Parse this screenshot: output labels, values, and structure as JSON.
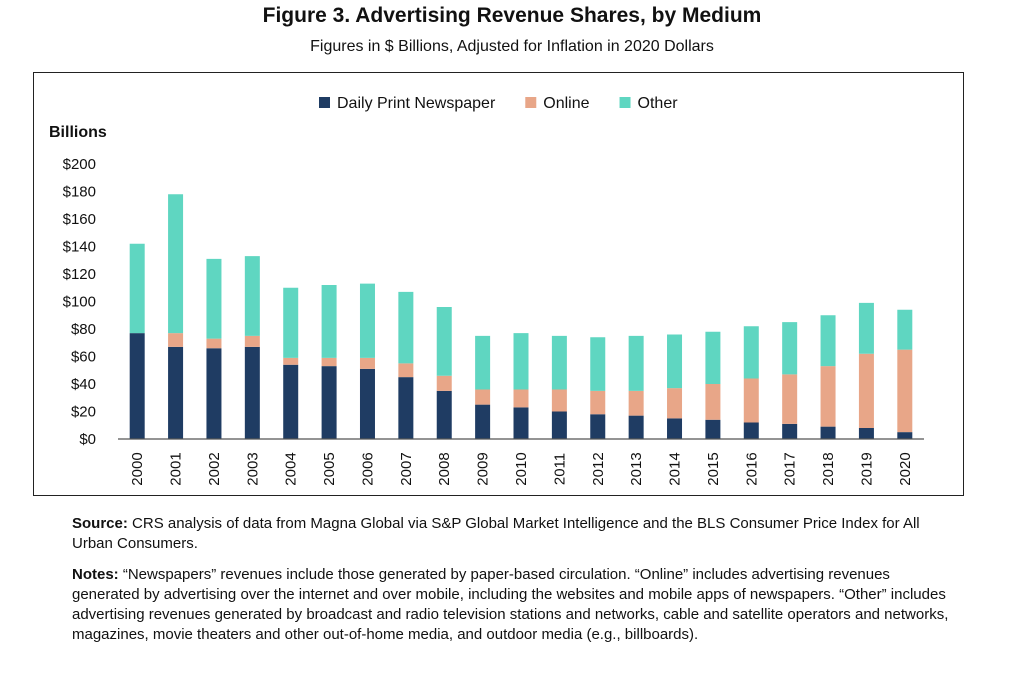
{
  "title": "Figure 3. Advertising Revenue Shares, by Medium",
  "subtitle": "Figures in $ Billions, Adjusted for Inflation in 2020 Dollars",
  "source_label": "Source:",
  "source_text": " CRS analysis of data from Magna Global via S&P Global Market Intelligence and the BLS Consumer Price Index for All Urban Consumers.",
  "notes_label": "Notes:",
  "notes_text": " “Newspapers” revenues include those generated by paper-based circulation. “Online” includes advertising revenues generated by advertising over the internet and over mobile, including the websites and mobile apps of newspapers. “Other” includes advertising revenues generated by broadcast and radio television stations and networks, cable and satellite operators and networks, magazines, movie theaters and other out-of-home media, and outdoor media (e.g., billboards).",
  "chart_data": {
    "type": "bar",
    "stacked": true,
    "title": "Figure 3. Advertising Revenue Shares, by Medium",
    "subtitle": "Figures in $ Billions, Adjusted for Inflation in 2020 Dollars",
    "ylabel": "Billions",
    "xlabel": "",
    "ylim": [
      0,
      200
    ],
    "yticks": [
      0,
      20,
      40,
      60,
      80,
      100,
      120,
      140,
      160,
      180,
      200
    ],
    "ytick_labels": [
      "$0",
      "$20",
      "$40",
      "$60",
      "$80",
      "$100",
      "$120",
      "$140",
      "$160",
      "$180",
      "$200"
    ],
    "grid": false,
    "legend_position": "top",
    "categories": [
      "2000",
      "2001",
      "2002",
      "2003",
      "2004",
      "2005",
      "2006",
      "2007",
      "2008",
      "2009",
      "2010",
      "2011",
      "2012",
      "2013",
      "2014",
      "2015",
      "2016",
      "2017",
      "2018",
      "2019",
      "2020"
    ],
    "series": [
      {
        "name": "Daily Print Newspaper",
        "color": "#1f3c63",
        "values": [
          77,
          67,
          66,
          67,
          54,
          53,
          51,
          45,
          35,
          25,
          23,
          20,
          18,
          17,
          15,
          14,
          12,
          11,
          9,
          8,
          5
        ]
      },
      {
        "name": "Online",
        "color": "#e8a688",
        "values": [
          0,
          10,
          7,
          8,
          5,
          6,
          8,
          10,
          11,
          11,
          13,
          16,
          17,
          18,
          22,
          26,
          32,
          36,
          44,
          54,
          60
        ]
      },
      {
        "name": "Other",
        "color": "#5fd6c1",
        "values": [
          65,
          101,
          58,
          58,
          51,
          53,
          54,
          52,
          50,
          39,
          41,
          39,
          39,
          40,
          39,
          38,
          38,
          38,
          37,
          37,
          29
        ]
      }
    ]
  }
}
